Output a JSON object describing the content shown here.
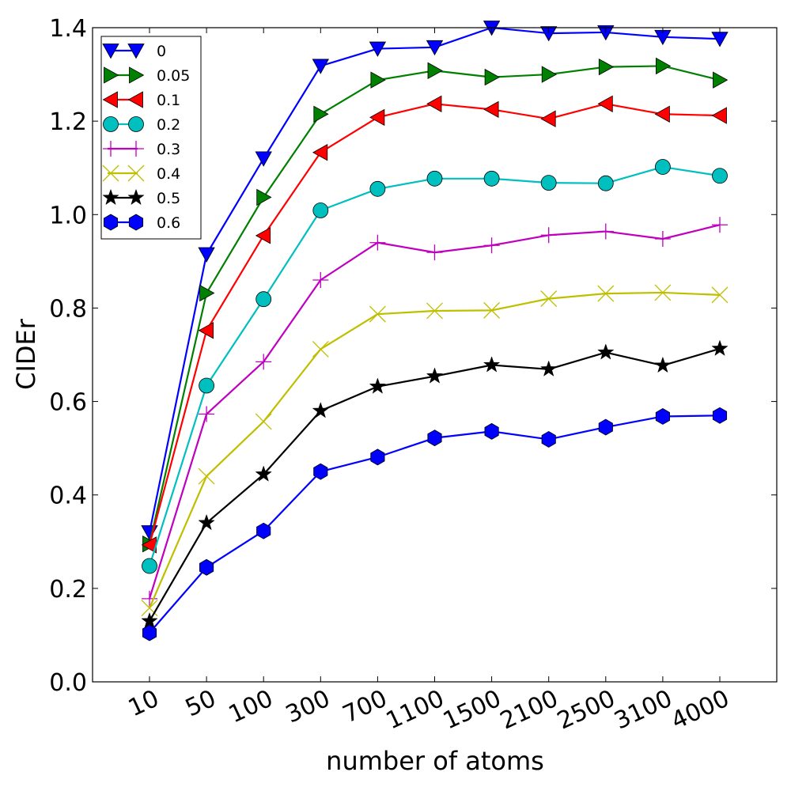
{
  "chart_data": {
    "type": "line",
    "xlabel": "number of atoms",
    "ylabel": "CIDEr",
    "categories": [
      "10",
      "50",
      "100",
      "300",
      "700",
      "1100",
      "1500",
      "2100",
      "2500",
      "3100",
      "4000"
    ],
    "ylim": [
      0.0,
      1.4
    ],
    "yticks": [
      "0.0",
      "0.2",
      "0.4",
      "0.6",
      "0.8",
      "1.0",
      "1.2",
      "1.4"
    ],
    "legend_position": "top-left",
    "grid": false,
    "series": [
      {
        "name": "0",
        "color": "#0000ff",
        "marker": "triangle-down",
        "values": [
          0.32,
          0.915,
          1.12,
          1.318,
          1.355,
          1.358,
          1.4,
          1.388,
          1.39,
          1.38,
          1.376
        ]
      },
      {
        "name": "0.05",
        "color": "#008000",
        "marker": "triangle-right",
        "values": [
          0.295,
          0.832,
          1.037,
          1.215,
          1.288,
          1.308,
          1.294,
          1.3,
          1.316,
          1.318,
          1.288
        ]
      },
      {
        "name": "0.1",
        "color": "#ff0000",
        "marker": "triangle-left",
        "values": [
          0.293,
          0.752,
          0.955,
          1.133,
          1.208,
          1.237,
          1.225,
          1.205,
          1.237,
          1.215,
          1.212
        ]
      },
      {
        "name": "0.2",
        "color": "#00bfbf",
        "marker": "circle",
        "values": [
          0.248,
          0.634,
          0.819,
          1.009,
          1.055,
          1.077,
          1.077,
          1.068,
          1.067,
          1.102,
          1.083
        ]
      },
      {
        "name": "0.3",
        "color": "#bf00bf",
        "marker": "plus",
        "values": [
          0.178,
          0.573,
          0.685,
          0.86,
          0.94,
          0.919,
          0.934,
          0.956,
          0.964,
          0.948,
          0.978
        ]
      },
      {
        "name": "0.4",
        "color": "#bfbf00",
        "marker": "x",
        "values": [
          0.158,
          0.44,
          0.557,
          0.712,
          0.787,
          0.794,
          0.795,
          0.82,
          0.831,
          0.833,
          0.828
        ]
      },
      {
        "name": "0.5",
        "color": "#000000",
        "marker": "star",
        "values": [
          0.13,
          0.34,
          0.444,
          0.58,
          0.632,
          0.654,
          0.678,
          0.669,
          0.705,
          0.677,
          0.713
        ]
      },
      {
        "name": "0.6",
        "color": "#0000ff",
        "marker": "hexagon",
        "values": [
          0.105,
          0.245,
          0.323,
          0.45,
          0.481,
          0.522,
          0.536,
          0.519,
          0.545,
          0.568,
          0.57
        ]
      }
    ]
  }
}
